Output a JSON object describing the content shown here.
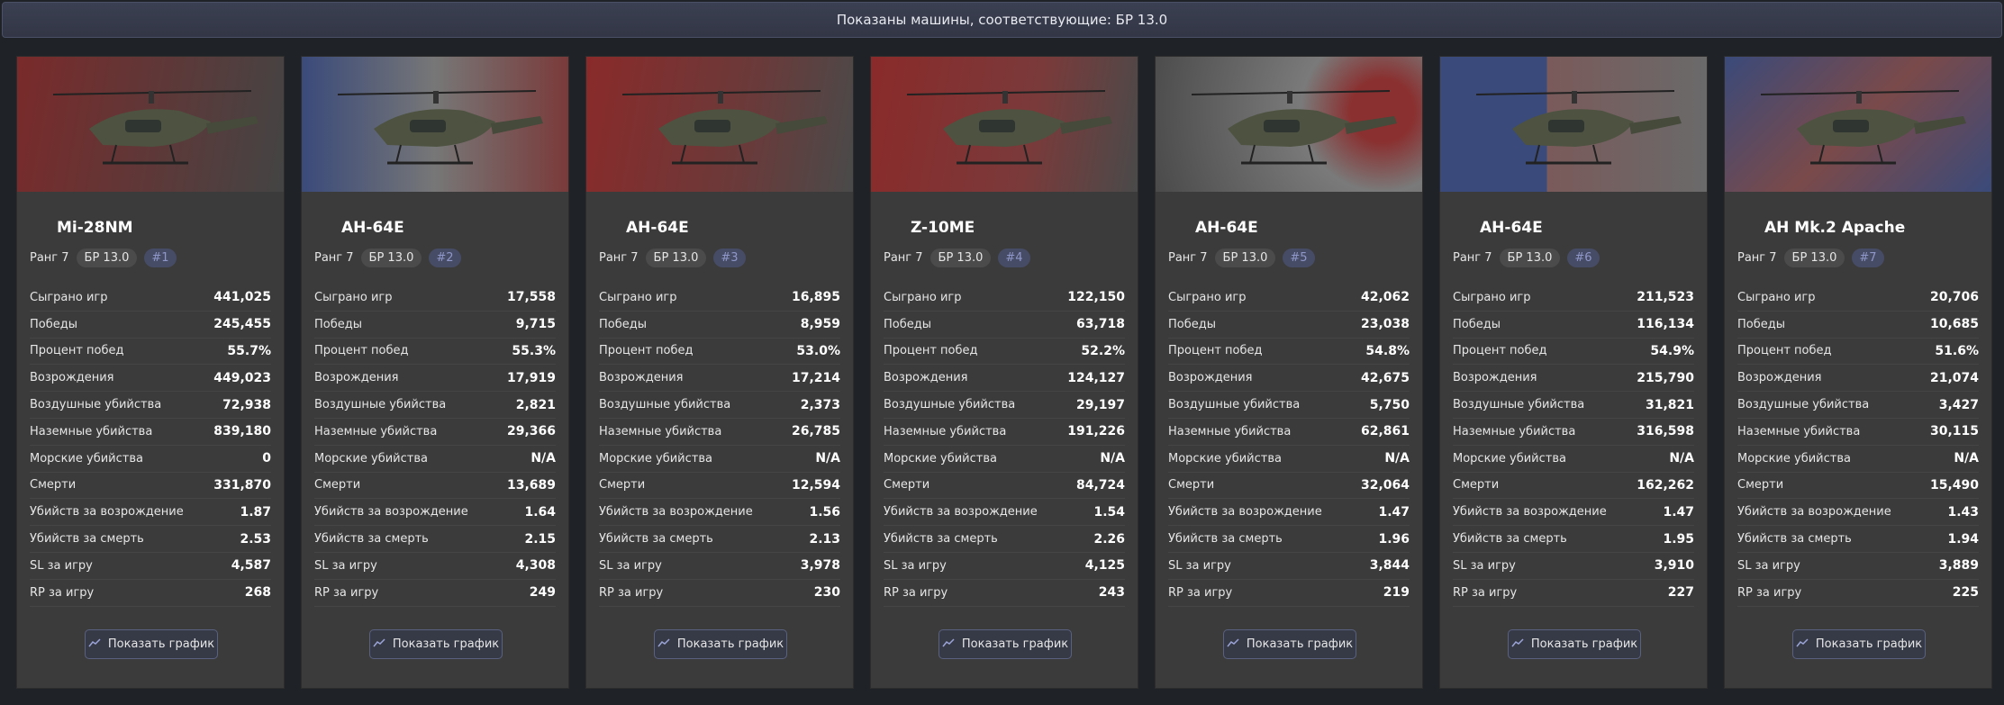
{
  "banner": "Показаны машины, соответствующие: БР 13.0",
  "stat_labels": [
    "Сыграно игр",
    "Победы",
    "Процент побед",
    "Возрождения",
    "Воздушные убийства",
    "Наземные убийства",
    "Морские убийства",
    "Смерти",
    "Убийств за возрождение",
    "Убийств за смерть",
    "SL за игру",
    "RP за игру"
  ],
  "button_label": "Показать график",
  "cards": [
    {
      "name": "Mi-28NM",
      "rank": "Ранг 7",
      "br": "БР 13.0",
      "position": "#1",
      "stats": [
        "441,025",
        "245,455",
        "55.7%",
        "449,023",
        "72,938",
        "839,180",
        "0",
        "331,870",
        "1.87",
        "2.53",
        "4,587",
        "268"
      ]
    },
    {
      "name": "AH-64E",
      "rank": "Ранг 7",
      "br": "БР 13.0",
      "position": "#2",
      "stats": [
        "17,558",
        "9,715",
        "55.3%",
        "17,919",
        "2,821",
        "29,366",
        "N/A",
        "13,689",
        "1.64",
        "2.15",
        "4,308",
        "249"
      ]
    },
    {
      "name": "AH-64E",
      "rank": "Ранг 7",
      "br": "БР 13.0",
      "position": "#3",
      "stats": [
        "16,895",
        "8,959",
        "53.0%",
        "17,214",
        "2,373",
        "26,785",
        "N/A",
        "12,594",
        "1.56",
        "2.13",
        "3,978",
        "230"
      ]
    },
    {
      "name": "Z-10ME",
      "rank": "Ранг 7",
      "br": "БР 13.0",
      "position": "#4",
      "stats": [
        "122,150",
        "63,718",
        "52.2%",
        "124,127",
        "29,197",
        "191,226",
        "N/A",
        "84,724",
        "1.54",
        "2.26",
        "4,125",
        "243"
      ]
    },
    {
      "name": "AH-64E",
      "rank": "Ранг 7",
      "br": "БР 13.0",
      "position": "#5",
      "stats": [
        "42,062",
        "23,038",
        "54.8%",
        "42,675",
        "5,750",
        "62,861",
        "N/A",
        "32,064",
        "1.47",
        "1.96",
        "3,844",
        "219"
      ]
    },
    {
      "name": "AH-64E",
      "rank": "Ранг 7",
      "br": "БР 13.0",
      "position": "#6",
      "stats": [
        "211,523",
        "116,134",
        "54.9%",
        "215,790",
        "31,821",
        "316,598",
        "N/A",
        "162,262",
        "1.47",
        "1.95",
        "3,910",
        "227"
      ]
    },
    {
      "name": "AH Mk.2 Apache",
      "rank": "Ранг 7",
      "br": "БР 13.0",
      "position": "#7",
      "stats": [
        "20,706",
        "10,685",
        "51.6%",
        "21,074",
        "3,427",
        "30,115",
        "N/A",
        "15,490",
        "1.43",
        "1.94",
        "3,889",
        "225"
      ]
    }
  ]
}
